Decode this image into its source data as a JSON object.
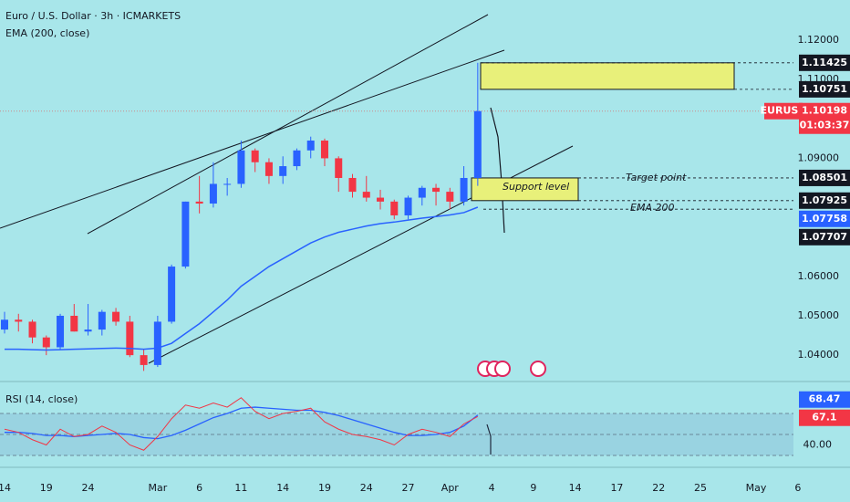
{
  "chart_data": {
    "type": "candlestick",
    "title": "Euro / U.S. Dollar · 3h · ICMARKETS",
    "subtitle": "EMA (200, close)",
    "categories": [
      "14",
      null,
      null,
      "19",
      null,
      null,
      "24",
      null,
      null,
      null,
      null,
      "Mar",
      null,
      null,
      "6",
      null,
      null,
      "11",
      null,
      null,
      "14",
      null,
      null,
      "19",
      null,
      null,
      "24",
      null,
      null,
      "27",
      null,
      null,
      "Apr",
      null,
      null,
      "4",
      null,
      null,
      "9",
      null,
      null,
      "14",
      null,
      null,
      "17",
      null,
      null,
      "22",
      null,
      null,
      "25",
      null,
      null,
      null,
      "May",
      null,
      null,
      "6"
    ],
    "open": [
      1.0465,
      1.049,
      1.0485,
      1.0445,
      1.042,
      1.05,
      1.046,
      1.0465,
      1.051,
      1.0485,
      1.04,
      1.0375,
      1.0485,
      1.0625,
      1.079,
      1.0785,
      1.0835,
      1.0835,
      1.092,
      1.089,
      1.0855,
      1.088,
      1.092,
      1.0945,
      1.09,
      1.085,
      1.0815,
      1.08,
      1.079,
      1.0755,
      1.08,
      1.0825,
      1.0815,
      1.079,
      1.085,
      null,
      null,
      null,
      null,
      null,
      null,
      null,
      null,
      null,
      null,
      null,
      null,
      null,
      null,
      null,
      null,
      null,
      null,
      null,
      null,
      null,
      null,
      null
    ],
    "high": [
      1.051,
      1.0505,
      1.049,
      1.045,
      1.0505,
      1.053,
      1.053,
      1.0515,
      1.052,
      1.05,
      1.0415,
      1.05,
      1.063,
      1.079,
      1.0855,
      1.089,
      1.085,
      1.0945,
      1.0925,
      1.09,
      1.0905,
      1.0925,
      1.0955,
      1.095,
      1.0905,
      1.086,
      1.0855,
      1.082,
      1.0795,
      1.0805,
      1.083,
      1.0835,
      1.0825,
      1.088,
      1.11425,
      null,
      null,
      null,
      null,
      null,
      null,
      null,
      null,
      null,
      null,
      null,
      null,
      null,
      null,
      null,
      null,
      null,
      null,
      null,
      null,
      null,
      null,
      null
    ],
    "low": [
      1.0455,
      1.046,
      1.043,
      1.04,
      1.0415,
      1.046,
      1.045,
      1.045,
      1.0475,
      1.0395,
      1.036,
      1.037,
      1.048,
      1.062,
      1.076,
      1.0775,
      1.0805,
      1.0825,
      1.0865,
      1.0835,
      1.0835,
      1.087,
      1.09,
      1.088,
      1.0815,
      1.08,
      1.079,
      1.077,
      1.0745,
      1.0745,
      1.078,
      1.078,
      1.077,
      1.078,
      1.083,
      null,
      null,
      null,
      null,
      null,
      null,
      null,
      null,
      null,
      null,
      null,
      null,
      null,
      null,
      null,
      null,
      null,
      null,
      null,
      null,
      null,
      null,
      null
    ],
    "close": [
      1.049,
      1.0485,
      1.0445,
      1.042,
      1.05,
      1.046,
      1.0465,
      1.051,
      1.0485,
      1.04,
      1.0375,
      1.0485,
      1.0625,
      1.079,
      1.0785,
      1.0835,
      1.0835,
      1.092,
      1.089,
      1.0855,
      1.088,
      1.092,
      1.0945,
      1.09,
      1.085,
      1.0815,
      1.08,
      1.079,
      1.0755,
      1.08,
      1.0825,
      1.0815,
      1.079,
      1.085,
      1.10198,
      null,
      null,
      null,
      null,
      null,
      null,
      null,
      null,
      null,
      null,
      null,
      null,
      null,
      null,
      null,
      null,
      null,
      null,
      null,
      null,
      null,
      null,
      null
    ],
    "up_color": "#2962ff",
    "down_color": "#f23645",
    "ema": {
      "color": "#2962ff",
      "values": [
        1.0415,
        1.0415,
        1.0414,
        1.0413,
        1.0414,
        1.0415,
        1.0416,
        1.0417,
        1.0418,
        1.0417,
        1.0415,
        1.0418,
        1.043,
        1.0455,
        1.048,
        1.051,
        1.054,
        1.0575,
        1.06,
        1.0625,
        1.0645,
        1.0665,
        1.0685,
        1.07,
        1.0712,
        1.072,
        1.0728,
        1.0734,
        1.0738,
        1.0743,
        1.0748,
        1.0752,
        1.0756,
        1.0762,
        1.07758,
        null,
        null,
        null,
        null,
        null,
        null,
        null,
        null,
        null,
        null,
        null,
        null,
        null,
        null,
        null,
        null,
        null,
        null,
        null,
        null,
        null,
        null,
        null
      ]
    },
    "ylim": [
      1.034,
      1.1302
    ],
    "yticks": [
      {
        "value": 1.12,
        "label": "1.12000"
      },
      {
        "value": 1.11,
        "label": "1.11000"
      },
      {
        "value": 1.09,
        "label": "1.09000"
      },
      {
        "value": 1.06,
        "label": "1.06000"
      },
      {
        "value": 1.05,
        "label": "1.05000"
      },
      {
        "value": 1.04,
        "label": "1.04000"
      }
    ],
    "levels": [
      {
        "value": 1.11425,
        "color": "#131722"
      },
      {
        "value": 1.10751,
        "color": "#131722"
      },
      {
        "value": 1.08501,
        "color": "#131722"
      },
      {
        "value": 1.07925,
        "color": "#131722"
      },
      {
        "value": 1.07758,
        "color": "#2962ff"
      },
      {
        "value": 1.07707,
        "color": "#131722"
      }
    ],
    "last_price": {
      "symbol": "EURUSD",
      "value": 1.10198,
      "countdown": "01:03:37",
      "color": "#f23645"
    },
    "annotations": [
      "Support level",
      "Target point",
      "EMA 200"
    ],
    "rsi": {
      "title": "RSI (14, close)",
      "color": "#f23645",
      "ma_color": "#2962ff",
      "values": [
        55,
        52,
        45,
        40,
        55,
        48,
        50,
        58,
        52,
        40,
        35,
        48,
        65,
        78,
        75,
        80,
        76,
        85,
        72,
        65,
        70,
        72,
        75,
        62,
        55,
        50,
        48,
        45,
        40,
        50,
        55,
        52,
        48,
        60,
        67.1,
        null,
        null,
        null,
        null,
        null,
        null,
        null,
        null,
        null,
        null,
        null,
        null,
        null,
        null,
        null,
        null,
        null,
        null,
        null,
        null,
        null,
        null,
        null
      ],
      "ma": [
        52,
        52,
        51,
        49,
        49,
        48,
        49,
        50,
        51,
        50,
        47,
        46,
        49,
        54,
        60,
        66,
        70,
        75,
        76,
        75,
        74,
        73,
        73,
        71,
        68,
        64,
        60,
        56,
        52,
        49,
        49,
        50,
        52,
        58,
        68.47,
        null,
        null,
        null,
        null,
        null,
        null,
        null,
        null,
        null,
        null,
        null,
        null,
        null,
        null,
        null,
        null,
        null,
        null,
        null,
        null,
        null,
        null,
        null
      ],
      "ylim": [
        18.7,
        100.4
      ],
      "yticks": [
        {
          "value": 40,
          "label": "40.00"
        }
      ],
      "levels": [
        70,
        50,
        30
      ]
    }
  }
}
